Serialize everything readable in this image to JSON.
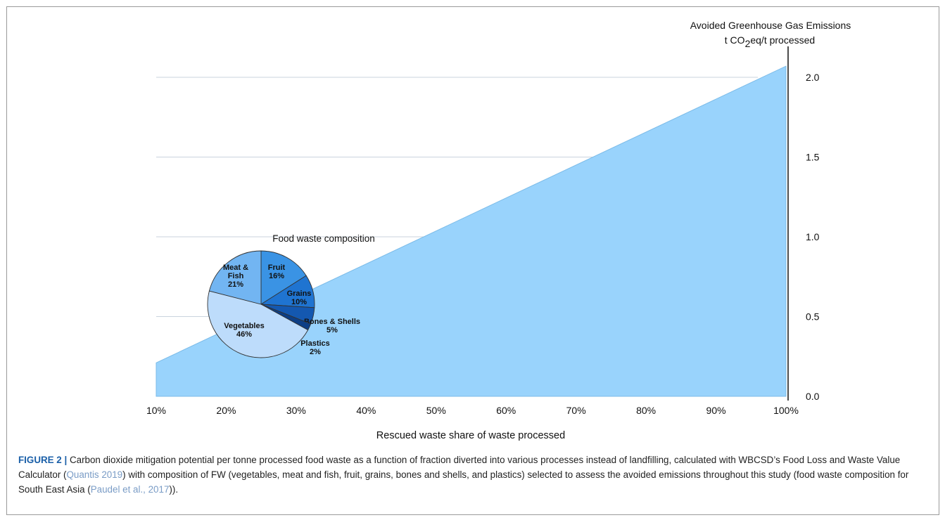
{
  "colors": {
    "area": "#99d3fc",
    "area_stroke": "#7bbbe8",
    "grid": "#c9d3de",
    "axis": "#111111",
    "accent": "#1a5fa8",
    "ref": "#7a9cc6"
  },
  "chart_data": [
    {
      "type": "area",
      "title": "",
      "y_title_line1": "Avoided Greenhouse Gas Emissions",
      "y_title_line2_pre": "t CO",
      "y_title_line2_sub": "2",
      "y_title_line2_post": "eq/t processed",
      "xlabel": "Rescued waste share of waste processed",
      "x_ticks": [
        "10%",
        "20%",
        "30%",
        "40%",
        "50%",
        "60%",
        "70%",
        "80%",
        "90%",
        "100%"
      ],
      "y_ticks": [
        "0.0",
        "0.5",
        "1.0",
        "1.5",
        "2.0"
      ],
      "xlim": [
        10,
        100
      ],
      "ylim": [
        0,
        2.0
      ],
      "grid": "horizontal",
      "series": [
        {
          "x": [
            10,
            100
          ],
          "y": [
            0.21,
            2.07
          ]
        }
      ]
    },
    {
      "type": "pie",
      "title": "Food waste composition",
      "slices": [
        {
          "label": "Fruit",
          "value": 16,
          "value_label": "16%",
          "color": "#3a93e4"
        },
        {
          "label": "Grains",
          "value": 10,
          "value_label": "10%",
          "color": "#1f74d1"
        },
        {
          "label": "Bones & Shells",
          "value": 5,
          "value_label": "5%",
          "color": "#1458b0"
        },
        {
          "label": "Plastics",
          "value": 2,
          "value_label": "2%",
          "color": "#0d3f86"
        },
        {
          "label": "Vegetables",
          "value": 46,
          "value_label": "46%",
          "color": "#bddcfb"
        },
        {
          "label": "Meat & Fish",
          "value": 21,
          "value_label": "21%",
          "color": "#72b5f2"
        }
      ]
    }
  ],
  "caption": {
    "label": "FIGURE 2 |",
    "text_1": " Carbon dioxide mitigation potential per tonne processed food waste as a function of fraction diverted into various processes instead of landfilling, calculated with WBCSD’s Food Loss and Waste Value Calculator (",
    "ref_1": "Quantis 2019",
    "text_2": ") with composition of FW (vegetables, meat and fish, fruit, grains, bones and shells, and plastics) selected to assess the avoided emissions throughout this study (food waste composition for South East Asia (",
    "ref_2": "Paudel et al., 2017",
    "text_3": "))."
  }
}
